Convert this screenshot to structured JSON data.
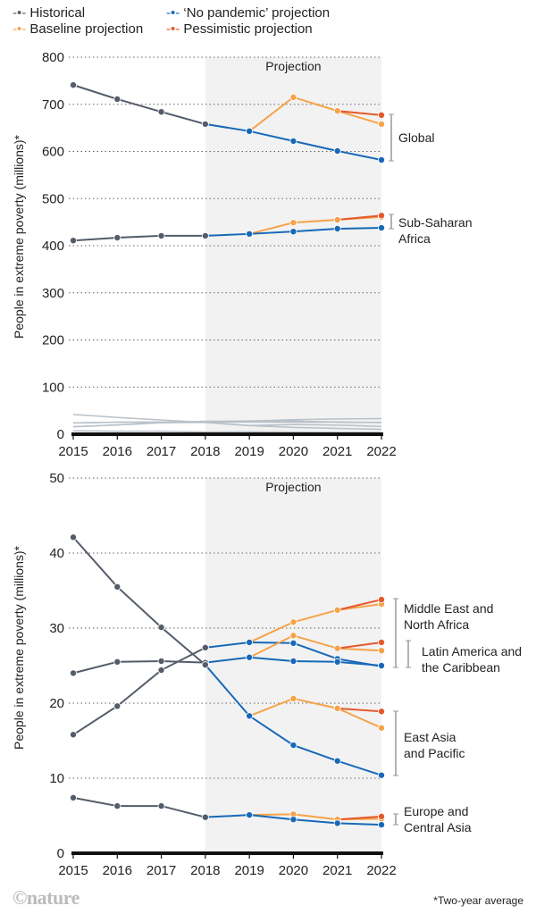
{
  "legend": [
    {
      "name": "Historical",
      "color": "#545c69"
    },
    {
      "name": "‘No pandemic’ projection",
      "color": "#1769b8"
    },
    {
      "name": "Baseline projection",
      "color": "#f5a34a"
    },
    {
      "name": "Pessimistic projection",
      "color": "#e5582b"
    }
  ],
  "footer": {
    "logo": "©nature",
    "note": "*Two-year average"
  },
  "chart_data": [
    {
      "type": "line",
      "title": "",
      "xlabel": "",
      "ylabel": "People in extreme poverty (millions)*",
      "x": [
        2015,
        2016,
        2017,
        2018,
        2019,
        2020,
        2021,
        2022
      ],
      "ylim": [
        0,
        800
      ],
      "yticks": [
        0,
        100,
        200,
        300,
        400,
        500,
        600,
        700,
        800
      ],
      "shaded_label": "Projection",
      "shaded_range": [
        2018,
        2022
      ],
      "grid": true,
      "series": [
        {
          "region": "Global",
          "label": "Global",
          "historical": [
            741,
            711,
            684,
            658,
            null,
            null,
            null,
            null
          ],
          "no_pandemic": [
            null,
            null,
            null,
            658,
            643,
            622,
            601,
            582
          ],
          "baseline": [
            null,
            null,
            null,
            null,
            643,
            715,
            686,
            658
          ],
          "pessimistic": [
            null,
            null,
            null,
            null,
            null,
            null,
            686,
            677
          ]
        },
        {
          "region": "Sub-Saharan Africa",
          "label": "Sub-Saharan\nAfrica",
          "historical": [
            411,
            417,
            421,
            421,
            null,
            null,
            null,
            null
          ],
          "no_pandemic": [
            null,
            null,
            null,
            421,
            425,
            430,
            436,
            438
          ],
          "baseline": [
            null,
            null,
            null,
            null,
            425,
            449,
            455,
            461
          ],
          "pessimistic": [
            null,
            null,
            null,
            null,
            null,
            null,
            455,
            464
          ]
        }
      ],
      "background_lines": [
        [
          42,
          35.5,
          30.1,
          25.1,
          18.3,
          14.4,
          12.3,
          10.4
        ],
        [
          24,
          25.5,
          25.6,
          25.4,
          26.1,
          25.6,
          25.5,
          25
        ],
        [
          15.8,
          19.6,
          24.4,
          27.4,
          28.1,
          28,
          25.9,
          24.9
        ],
        [
          7.4,
          6.3,
          6.3,
          4.8,
          5.1,
          4.5,
          4,
          3.8
        ],
        [
          24,
          25.5,
          25.6,
          25.4,
          28,
          30.8,
          32.4,
          33.2
        ],
        [
          15.8,
          19.6,
          24.4,
          25.1,
          18.3,
          20.6,
          19.3,
          16.7
        ]
      ]
    },
    {
      "type": "line",
      "title": "",
      "xlabel": "",
      "ylabel": "People in extreme poverty (millions)*",
      "x": [
        2015,
        2016,
        2017,
        2018,
        2019,
        2020,
        2021,
        2022
      ],
      "ylim": [
        0,
        50
      ],
      "yticks": [
        0,
        10,
        20,
        30,
        40,
        50
      ],
      "shaded_label": "Projection",
      "shaded_range": [
        2018,
        2022
      ],
      "grid": true,
      "series": [
        {
          "region": "Middle East and North Africa",
          "label": "Middle East and\nNorth Africa",
          "historical": [
            15.8,
            19.6,
            24.4,
            27.4,
            null,
            null,
            null,
            null
          ],
          "no_pandemic": [
            null,
            null,
            null,
            27.4,
            28.1,
            28.0,
            25.9,
            24.9
          ],
          "baseline": [
            null,
            null,
            null,
            null,
            28.1,
            30.8,
            32.4,
            33.2
          ],
          "pessimistic": [
            null,
            null,
            null,
            null,
            null,
            null,
            32.4,
            33.8
          ]
        },
        {
          "region": "Latin America and the Caribbean",
          "label": "Latin America and\nthe Caribbean",
          "historical": [
            24.0,
            25.5,
            25.6,
            25.4,
            null,
            null,
            null,
            null
          ],
          "no_pandemic": [
            null,
            null,
            null,
            25.4,
            26.1,
            25.6,
            25.5,
            25.0
          ],
          "baseline": [
            null,
            null,
            null,
            null,
            26.1,
            29.0,
            27.3,
            27.0
          ],
          "pessimistic": [
            null,
            null,
            null,
            null,
            null,
            null,
            27.3,
            28.1
          ]
        },
        {
          "region": "East Asia and Pacific",
          "label": "East Asia\nand Pacific",
          "historical": [
            42.1,
            35.5,
            30.1,
            25.1,
            null,
            null,
            null,
            null
          ],
          "no_pandemic": [
            null,
            null,
            null,
            25.1,
            18.3,
            14.4,
            12.3,
            10.4
          ],
          "baseline": [
            null,
            null,
            null,
            null,
            18.3,
            20.6,
            19.3,
            16.7
          ],
          "pessimistic": [
            null,
            null,
            null,
            null,
            null,
            null,
            19.3,
            18.9
          ]
        },
        {
          "region": "Europe and Central Asia",
          "label": "Europe and\nCentral Asia",
          "historical": [
            7.4,
            6.3,
            6.3,
            4.8,
            null,
            null,
            null,
            null
          ],
          "no_pandemic": [
            null,
            null,
            null,
            4.8,
            5.1,
            4.5,
            4.0,
            3.8
          ],
          "baseline": [
            null,
            null,
            null,
            null,
            5.1,
            5.2,
            4.5,
            4.6
          ],
          "pessimistic": [
            null,
            null,
            null,
            null,
            null,
            null,
            4.5,
            4.9
          ]
        }
      ]
    }
  ]
}
